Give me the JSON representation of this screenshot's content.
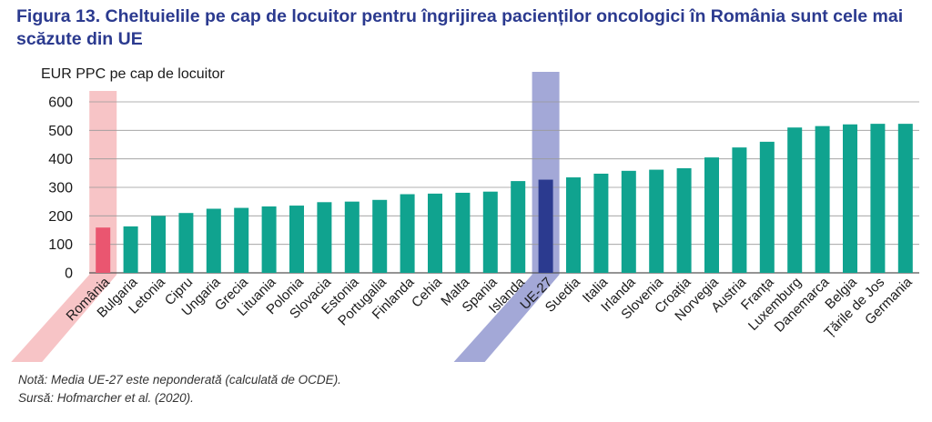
{
  "title": "Figura 13. Cheltuielile pe cap de locuitor pentru îngrijirea pacienților oncologici în România sunt cele mai scăzute din UE",
  "note": "Notă: Media UE-27 este neponderată (calculată de OCDE).",
  "source": "Sursă: Hofmarcher et al. (2020).",
  "colors": {
    "bar": "#10a38f",
    "highlight_romania_bar": "#ea5670",
    "highlight_romania_band": "#f7c4c6",
    "highlight_eu_bar": "#2b3a8f",
    "highlight_eu_band": "#a3a8d7",
    "title": "#2b3a8f",
    "grid": "#999999"
  },
  "chart_data": {
    "type": "bar",
    "ylabel": "EUR PPC pe cap de locuitor",
    "xlabel": "",
    "ylim": [
      0,
      600
    ],
    "yticks": [
      0,
      100,
      200,
      300,
      400,
      500,
      600
    ],
    "grid": true,
    "categories": [
      "România",
      "Bulgaria",
      "Letonia",
      "Cipru",
      "Ungaria",
      "Grecia",
      "Lituania",
      "Polonia",
      "Slovacia",
      "Estonia",
      "Portugalia",
      "Finlanda",
      "Cehia",
      "Malta",
      "Spania",
      "Islanda",
      "UE-27",
      "Suedia",
      "Italia",
      "Irlanda",
      "Slovenia",
      "Croația",
      "Norvegia",
      "Austria",
      "Franța",
      "Luxemburg",
      "Danemarca",
      "Belgia",
      "Țările de Jos",
      "Germania"
    ],
    "values": [
      159,
      163,
      200,
      210,
      225,
      228,
      233,
      236,
      248,
      250,
      256,
      276,
      278,
      281,
      285,
      322,
      327,
      335,
      348,
      358,
      362,
      367,
      405,
      440,
      460,
      510,
      515,
      521,
      523,
      523
    ],
    "highlighted": [
      "România",
      "UE-27"
    ]
  }
}
